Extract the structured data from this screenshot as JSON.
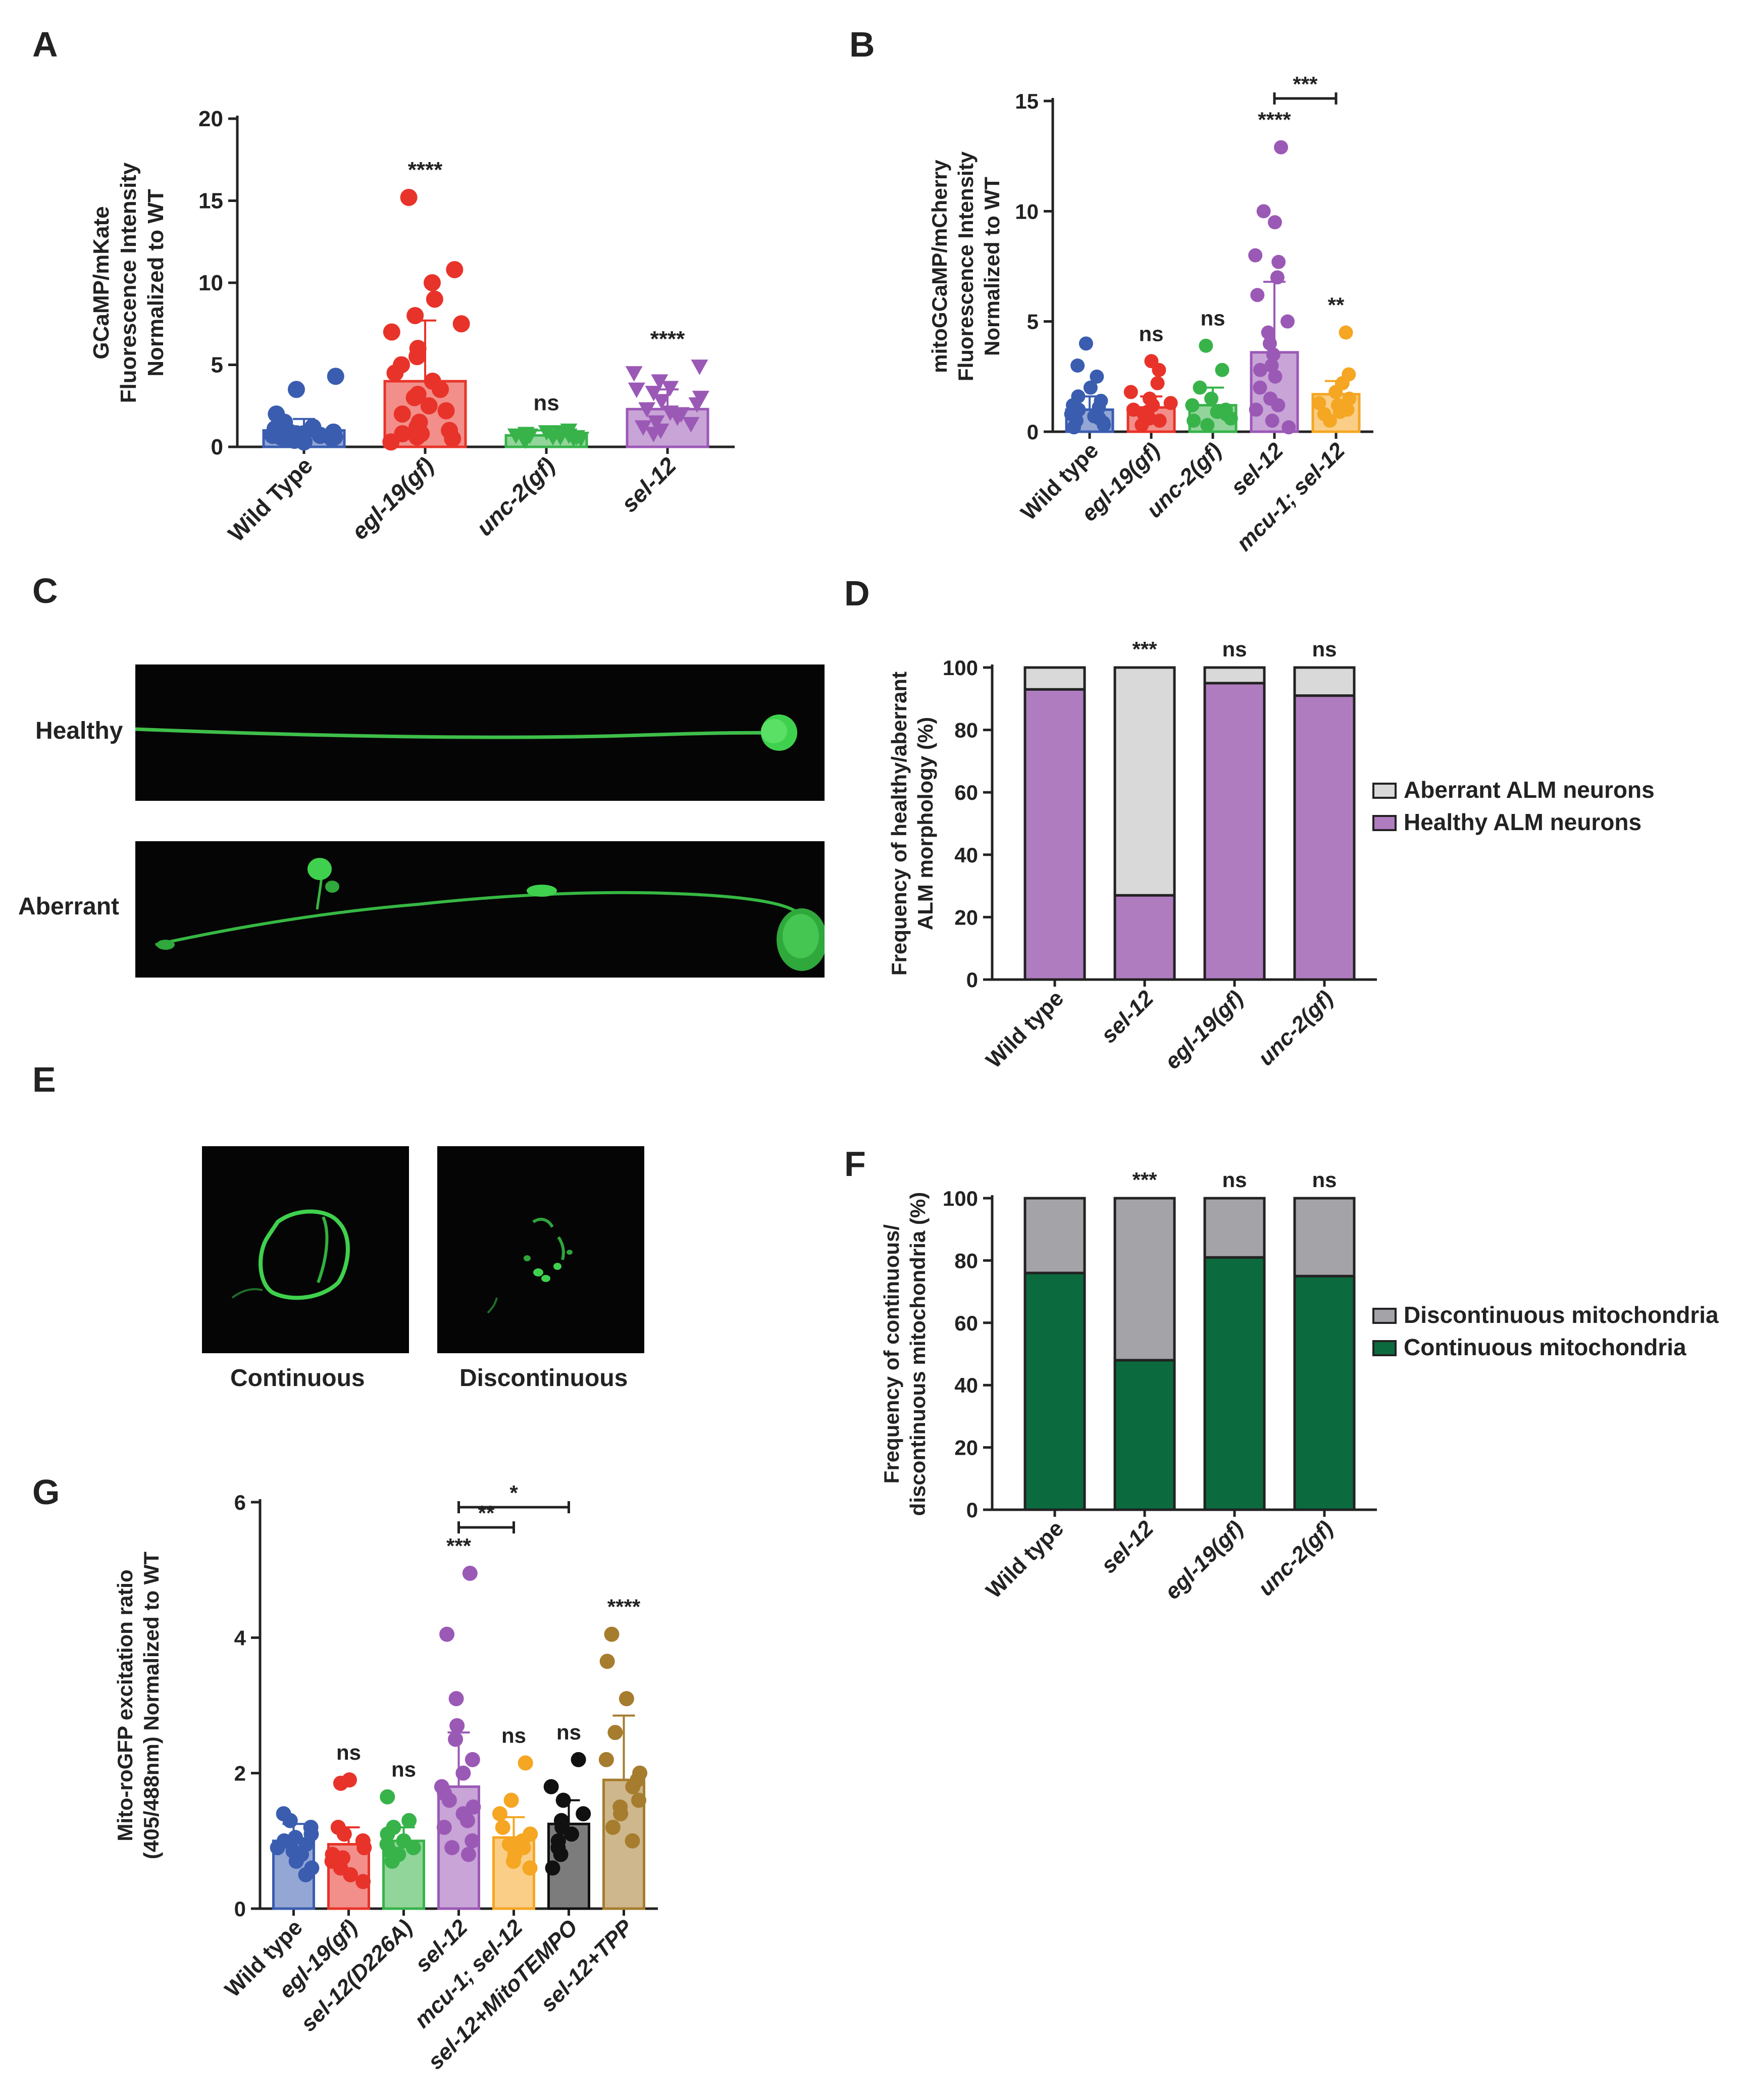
{
  "panels": {
    "A": {
      "label": "A"
    },
    "B": {
      "label": "B"
    },
    "C": {
      "label": "C",
      "row_labels": [
        "Healthy",
        "Aberrant"
      ]
    },
    "D": {
      "label": "D"
    },
    "E": {
      "label": "E",
      "image_labels": [
        "Continuous",
        "Discontinuous"
      ]
    },
    "F": {
      "label": "F"
    },
    "G": {
      "label": "G"
    }
  },
  "colors": {
    "wild_type": "#3a5db0",
    "egl19": "#e8332a",
    "unc2": "#37b34a",
    "sel12": "#9b59b6",
    "mcu1": "#f5a623",
    "mitotempo": "#111111",
    "tpp": "#a67c2e",
    "healthy": "#b07cc0",
    "aberrant": "#d9d9d9",
    "continuous": "#0c6b3e",
    "discontinuous": "#a3a3a8"
  },
  "chart_data": [
    {
      "id": "A",
      "type": "bar",
      "categories": [
        "Wild Type",
        "egl-19(gf)",
        "unc-2(gf)",
        "sel-12"
      ],
      "values": [
        1.0,
        4.0,
        0.7,
        2.3
      ],
      "errors": [
        0.7,
        3.7,
        0.3,
        1.2
      ],
      "points": [
        [
          0.5,
          0.6,
          0.7,
          0.8,
          0.9,
          1.0,
          0.4,
          0.3,
          1.2,
          1.5,
          2.0,
          4.3,
          3.5,
          0.6,
          0.8,
          0.5,
          1.1,
          0.7,
          0.9,
          0.6
        ],
        [
          0.3,
          0.5,
          0.8,
          1.0,
          1.5,
          2.0,
          2.5,
          3.0,
          3.5,
          4.0,
          4.5,
          5.0,
          6.0,
          7.0,
          7.5,
          8.0,
          9.0,
          10.0,
          10.8,
          15.2,
          1.2,
          0.8,
          0.6,
          2.2,
          3.2,
          5.5
        ],
        [
          0.4,
          0.5,
          0.6,
          0.7,
          0.8,
          0.9,
          1.0,
          0.6,
          0.5,
          0.7,
          0.8,
          0.6,
          0.9,
          0.5,
          0.7
        ],
        [
          0.8,
          1.2,
          1.5,
          1.8,
          2.0,
          2.3,
          2.6,
          3.0,
          3.3,
          3.6,
          4.0,
          4.5,
          4.9,
          1.0,
          1.4,
          2.1,
          2.8,
          3.5
        ]
      ],
      "significance": [
        "",
        "****",
        "ns",
        "****"
      ],
      "ylabel_lines": [
        "GCaMP/mKate",
        "Fluorescence Intensity",
        "Normalized to WT"
      ],
      "ylim": [
        0,
        20
      ],
      "yticks": [
        "0",
        "5",
        "10",
        "15",
        "20"
      ]
    },
    {
      "id": "B",
      "type": "bar",
      "categories": [
        "Wild type",
        "egl-19(gf)",
        "unc-2(gf)",
        "sel-12",
        "mcu-1; sel-12"
      ],
      "values": [
        1.0,
        1.1,
        1.2,
        3.6,
        1.7
      ],
      "errors": [
        0.6,
        0.5,
        0.8,
        3.2,
        0.6
      ],
      "points": [
        [
          0.2,
          0.4,
          0.6,
          0.8,
          1.0,
          1.2,
          1.4,
          1.6,
          2.0,
          2.5,
          3.0,
          4.0,
          0.5,
          0.7,
          0.9,
          1.1,
          0.3
        ],
        [
          0.3,
          0.5,
          0.8,
          1.0,
          1.2,
          1.5,
          1.8,
          2.2,
          2.8,
          3.2,
          0.6,
          0.9,
          1.3
        ],
        [
          0.3,
          0.5,
          0.8,
          1.0,
          1.2,
          1.5,
          2.0,
          2.8,
          3.9,
          0.6,
          0.9
        ],
        [
          0.2,
          0.5,
          1.0,
          1.5,
          2.0,
          2.5,
          3.0,
          3.5,
          4.0,
          4.5,
          5.0,
          6.2,
          7.0,
          7.7,
          8.0,
          9.5,
          10.0,
          12.9,
          1.2,
          2.8
        ],
        [
          0.5,
          0.8,
          1.0,
          1.2,
          1.5,
          1.8,
          2.2,
          2.6,
          4.5,
          1.3,
          0.9
        ]
      ],
      "significance": [
        "",
        "ns",
        "ns",
        "****",
        "**"
      ],
      "bracket": {
        "from": 3,
        "to": 4,
        "label": "***"
      },
      "ylabel_lines": [
        "mitoGCaMP/mCherry",
        "Fluorescence Intensity",
        "Normalized to WT"
      ],
      "ylim": [
        0,
        15
      ],
      "yticks": [
        "0",
        "5",
        "10",
        "15"
      ]
    },
    {
      "id": "D",
      "type": "bar",
      "stacked": true,
      "categories": [
        "Wild type",
        "sel-12",
        "egl-19(gf)",
        "unc-2(gf)"
      ],
      "series": [
        {
          "name": "Healthy ALM neurons",
          "values": [
            93,
            27,
            95,
            91
          ]
        },
        {
          "name": "Aberrant ALM neurons",
          "values": [
            7,
            73,
            5,
            9
          ]
        }
      ],
      "significance": [
        "",
        "***",
        "ns",
        "ns"
      ],
      "ylabel_lines": [
        "Frequency of healthy/aberrant",
        "ALM morphology (%)"
      ],
      "ylim": [
        0,
        100
      ],
      "yticks": [
        "0",
        "20",
        "40",
        "60",
        "80",
        "100"
      ]
    },
    {
      "id": "F",
      "type": "bar",
      "stacked": true,
      "categories": [
        "Wild type",
        "sel-12",
        "egl-19(gf)",
        "unc-2(gf)"
      ],
      "series": [
        {
          "name": "Continuous mitochondria",
          "values": [
            76,
            48,
            81,
            75
          ]
        },
        {
          "name": "Discontinuous mitochondria",
          "values": [
            24,
            52,
            19,
            25
          ]
        }
      ],
      "significance": [
        "",
        "***",
        "ns",
        "ns"
      ],
      "ylabel_lines": [
        "Frequency of continuous/",
        "discontinuous mitochondria (%)"
      ],
      "ylim": [
        0,
        100
      ],
      "yticks": [
        "0",
        "20",
        "40",
        "60",
        "80",
        "100"
      ]
    },
    {
      "id": "G",
      "type": "bar",
      "categories": [
        "Wild type",
        "egl-19(gf)",
        "sel-12(D226A)",
        "sel-12",
        "mcu-1; sel-12",
        "sel-12+MitoTEMPO",
        "sel-12+TPP"
      ],
      "values": [
        1.0,
        0.95,
        1.0,
        1.8,
        1.05,
        1.25,
        1.9
      ],
      "errors": [
        0.25,
        0.25,
        0.2,
        0.8,
        0.3,
        0.35,
        0.95
      ],
      "points": [
        [
          0.5,
          0.7,
          0.8,
          0.9,
          1.0,
          1.1,
          1.2,
          1.3,
          1.4,
          0.6,
          0.85,
          0.95,
          1.05
        ],
        [
          0.4,
          0.6,
          0.7,
          0.8,
          0.9,
          1.0,
          1.1,
          1.2,
          1.9,
          1.85,
          0.5,
          0.75
        ],
        [
          0.7,
          0.8,
          0.9,
          1.0,
          1.1,
          1.2,
          1.3,
          1.65,
          0.85,
          0.95
        ],
        [
          0.8,
          1.0,
          1.2,
          1.4,
          1.5,
          1.6,
          1.8,
          2.0,
          2.2,
          2.5,
          2.7,
          3.1,
          4.05,
          4.95,
          0.9,
          1.3,
          1.7
        ],
        [
          0.6,
          0.8,
          0.9,
          1.0,
          1.1,
          1.2,
          1.4,
          1.6,
          2.15,
          0.7,
          0.95
        ],
        [
          0.6,
          0.8,
          1.0,
          1.2,
          1.4,
          1.6,
          1.8,
          2.2,
          0.9,
          1.1,
          1.3
        ],
        [
          1.2,
          1.4,
          1.6,
          1.8,
          2.0,
          2.2,
          2.6,
          3.1,
          3.65,
          4.05,
          1.0,
          1.5,
          1.9
        ]
      ],
      "significance": [
        "",
        "ns",
        "ns",
        "***",
        "ns",
        "ns",
        "****"
      ],
      "brackets": [
        {
          "from": 3,
          "to": 4,
          "label": "**"
        },
        {
          "from": 3,
          "to": 5,
          "label": "*"
        }
      ],
      "ylabel_lines": [
        "Mito-roGFP excitation ratio",
        "(405/488nm) Normalized to WT"
      ],
      "ylim": [
        0,
        6
      ],
      "yticks": [
        "0",
        "2",
        "4",
        "6"
      ]
    }
  ]
}
